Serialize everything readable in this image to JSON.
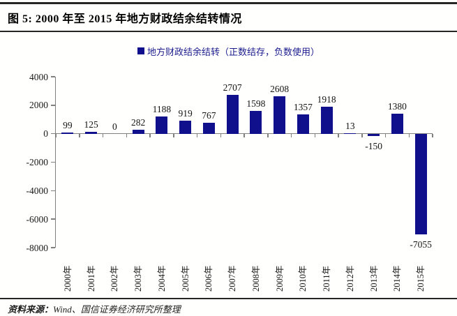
{
  "header": {
    "title": "图 5: 2000 年至 2015 年地方财政结余结转情况"
  },
  "legend": {
    "label": "地方财政结余结转（正数结存，负数使用）",
    "marker_color": "#10108C",
    "text_color": "#1b1b8e"
  },
  "chart_data": {
    "type": "bar",
    "title": "图 5: 2000 年至 2015 年地方财政结余结转情况",
    "categories": [
      "2000年",
      "2001年",
      "2002年",
      "2003年",
      "2004年",
      "2005年",
      "2006年",
      "2007年",
      "2008年",
      "2009年",
      "2010年",
      "2011年",
      "2012年",
      "2013年",
      "2014年",
      "2015年"
    ],
    "values": [
      99,
      125,
      0,
      282,
      1188,
      919,
      767,
      2707,
      1598,
      2608,
      1357,
      1918,
      13,
      -150,
      1380,
      -7055
    ],
    "legend": "地方财政结余结转（正数结存，负数使用）",
    "bar_color": "#10108C",
    "axis_color": "#808080",
    "ylim": [
      -8000,
      4000
    ],
    "yticks": [
      4000,
      2000,
      0,
      -2000,
      -4000,
      -6000,
      -8000
    ],
    "grid": false,
    "legend_position": "top",
    "data_labels": true
  },
  "footer": {
    "source_label": "资料来源：",
    "source_text": "Wind、国信证券经济研究所整理"
  }
}
